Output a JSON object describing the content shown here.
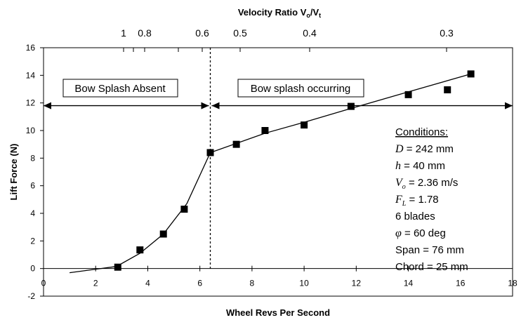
{
  "chart_data": {
    "type": "scatter",
    "title": "",
    "xlabel": "Wheel Revs Per Second",
    "ylabel": "Lift Force (N)",
    "xlim": [
      0,
      18
    ],
    "ylim": [
      -2,
      16
    ],
    "x_ticks": [
      0,
      2,
      4,
      6,
      8,
      10,
      12,
      14,
      16,
      18
    ],
    "y_ticks": [
      -2,
      0,
      2,
      4,
      6,
      8,
      10,
      12,
      14,
      16
    ],
    "top_axis": {
      "label_main": "Velocity Ratio V",
      "label_sub1": "o",
      "label_slash": "/V",
      "label_sub2": "t",
      "ticks": [
        {
          "label": "1",
          "x": 3.08
        },
        {
          "label": "0.8",
          "x": 3.85
        },
        {
          "label": "0.6",
          "x": 5.13
        },
        {
          "label": "0.5",
          "x": 6.16
        },
        {
          "label": "0.4",
          "x": 7.7
        },
        {
          "label": "0.3",
          "x": 10.27
        }
      ],
      "minor_ticks": [
        3.42,
        4.4
      ]
    },
    "series": [
      {
        "name": "",
        "marker": "square",
        "points": [
          [
            2.85,
            0.1
          ],
          [
            3.7,
            1.35
          ],
          [
            4.6,
            2.5
          ],
          [
            5.4,
            4.3
          ],
          [
            6.4,
            8.4
          ],
          [
            7.4,
            9.0
          ],
          [
            8.5,
            10.0
          ],
          [
            10.0,
            10.4
          ],
          [
            11.8,
            11.75
          ],
          [
            14.0,
            12.6
          ],
          [
            15.5,
            12.95
          ],
          [
            16.4,
            14.1
          ]
        ]
      }
    ],
    "fit_line": [
      [
        1.0,
        -0.3
      ],
      [
        2.8,
        0.15
      ],
      [
        3.7,
        1.1
      ],
      [
        4.6,
        2.5
      ],
      [
        5.5,
        4.7
      ],
      [
        6.4,
        8.4
      ],
      [
        8.5,
        9.8
      ],
      [
        10.0,
        10.6
      ],
      [
        11.8,
        11.6
      ],
      [
        14.0,
        12.8
      ],
      [
        16.4,
        14.1
      ]
    ],
    "divider_x": 6.4,
    "regions": {
      "left_label": "Bow Splash Absent",
      "right_label": "Bow splash occurring",
      "arrow_y": 11.8
    },
    "conditions": {
      "heading": "Conditions:",
      "lines": [
        {
          "sym": "D",
          "sub": "",
          "text": " = 242 mm"
        },
        {
          "sym": "h",
          "sub": "",
          "text": " = 40 mm"
        },
        {
          "sym": "V",
          "sub": "o",
          "text": " = 2.36 m/s"
        },
        {
          "sym": "F",
          "sub": "L",
          "text": " = 1.78"
        },
        {
          "sym": "",
          "sub": "",
          "text": "6 blades"
        },
        {
          "sym": "φ",
          "sub": "",
          "text": " = 60 deg"
        },
        {
          "sym": "",
          "sub": "",
          "text": "Span = 76 mm"
        },
        {
          "sym": "",
          "sub": "",
          "text": "Chord = 25 mm"
        }
      ]
    }
  }
}
